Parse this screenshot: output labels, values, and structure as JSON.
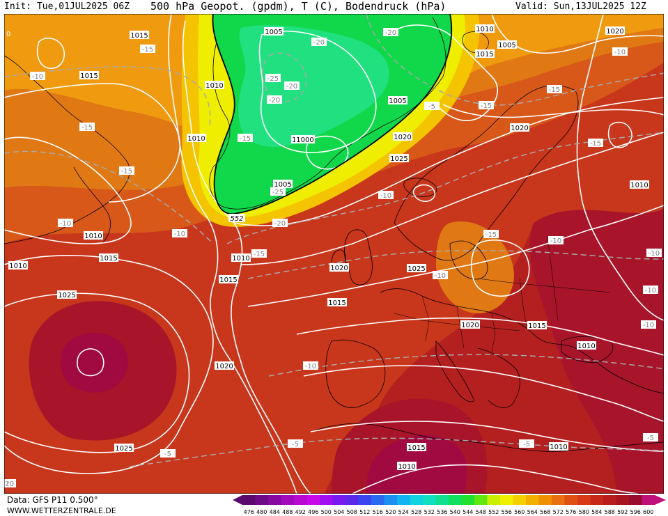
{
  "header": {
    "init": "Init: Tue,01JUL2025 06Z",
    "title": "500 hPa Geopot. (gpdm), T (C), Bodendruck (hPa)",
    "valid": "Valid: Sun,13JUL2025 12Z"
  },
  "footer": {
    "source": "Data: GFS P11 0.500°",
    "website": "WWW.WETTERZENTRALE.DE"
  },
  "legend": {
    "values": [
      "476",
      "480",
      "484",
      "488",
      "492",
      "496",
      "500",
      "504",
      "508",
      "512",
      "516",
      "520",
      "524",
      "528",
      "532",
      "536",
      "540",
      "544",
      "548",
      "552",
      "556",
      "560",
      "564",
      "568",
      "572",
      "576",
      "580",
      "584",
      "588",
      "592",
      "596",
      "600"
    ],
    "colors": [
      "#5a0a6e",
      "#6e0a86",
      "#860aa0",
      "#a00ab8",
      "#b80ad0",
      "#c80ae8",
      "#a010f0",
      "#7a1af0",
      "#5a2ae8",
      "#3a44f0",
      "#2a6af0",
      "#1a90f0",
      "#10b4f0",
      "#10d2e0",
      "#10e0c0",
      "#10e090",
      "#10e060",
      "#20e030",
      "#60e810",
      "#c8f000",
      "#f0f000",
      "#f4d000",
      "#f4b000",
      "#f09000",
      "#e87010",
      "#e05010",
      "#d83a18",
      "#c82818",
      "#b81c1c",
      "#a81420",
      "#980c30",
      "#c0107a"
    ]
  },
  "map": {
    "fill_colors": {
      "green_core": "#20e080",
      "green": "#10d84a",
      "yellow": "#f0ee00",
      "gold": "#f4c400",
      "orange": "#f09a10",
      "dark_orange": "#e07814",
      "red_orange": "#d8581a",
      "red": "#c8361c",
      "dark_red": "#b42020",
      "crimson": "#a8142a",
      "magenta_red": "#a00a40"
    },
    "pressure_labels": [
      "1015",
      "1005",
      "1000",
      "1005",
      "1010",
      "1015",
      "1010",
      "1015",
      "1010",
      "1010",
      "1005",
      "1000",
      "1005",
      "1020",
      "1025",
      "1020",
      "1010",
      "1015",
      "1020",
      "1025",
      "1015",
      "1010",
      "1020",
      "1025",
      "1020",
      "1015",
      "1010",
      "1025",
      "1015",
      "1010",
      "1010",
      "1020",
      "1015",
      "1010"
    ],
    "temperature_labels": [
      "-15",
      "-10",
      "-15",
      "-15",
      "-10",
      "-10",
      "-20",
      "-20",
      "-25",
      "-20",
      "-20",
      "-15",
      "-25",
      "-20",
      "-15",
      "-15",
      "-15",
      "-10",
      "-15",
      "-15",
      "-10",
      "-10",
      "-10",
      "-10",
      "-10",
      "-10",
      "-5",
      "-5",
      "-5",
      "-10",
      "-5",
      "-5",
      "-20",
      "-10"
    ],
    "geopotential_label": "552",
    "edge_labels": [
      "0",
      "10"
    ]
  }
}
